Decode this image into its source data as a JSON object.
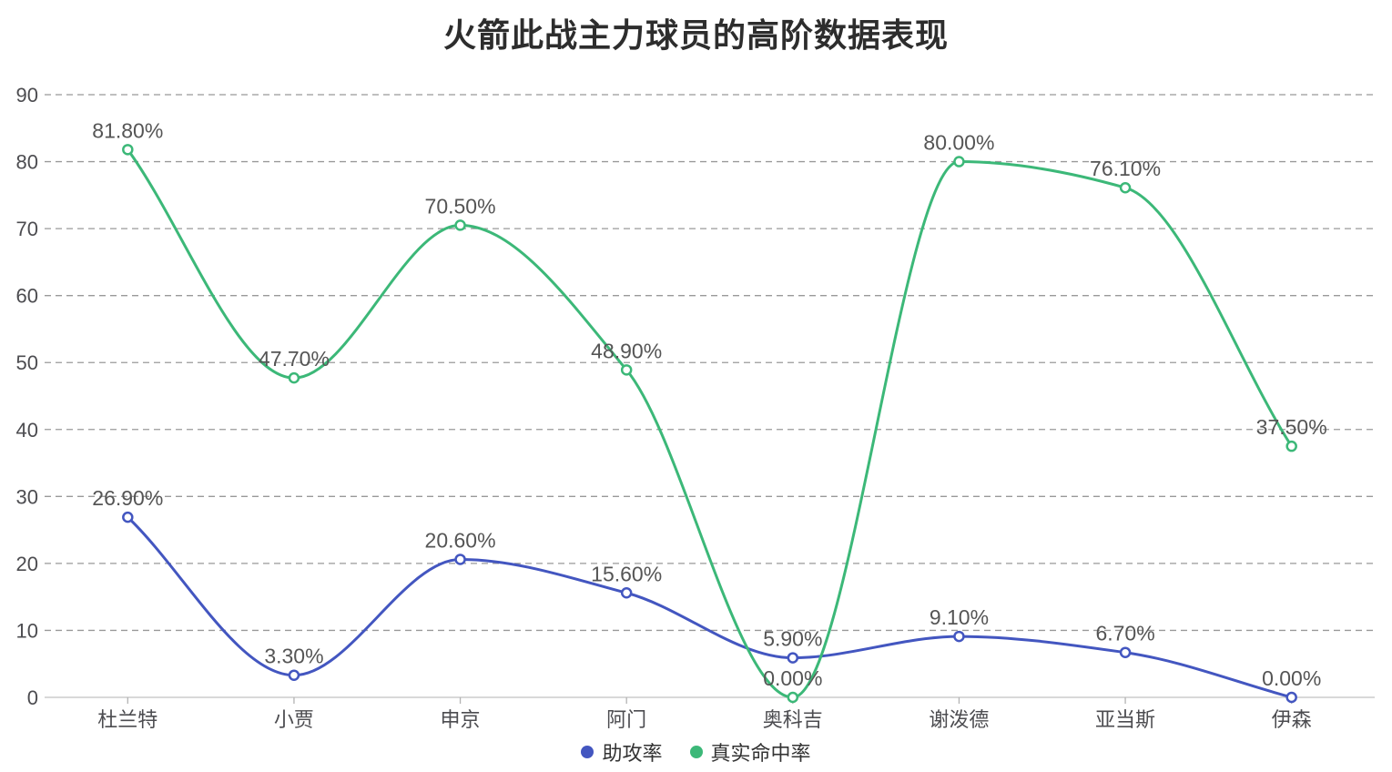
{
  "header": {
    "title": "火箭此战主力球员的高阶数据表现"
  },
  "colors": {
    "background": "#ffffff",
    "title_text": "#2d2d2d",
    "grid_line": "#999999",
    "axis_line": "#cccccc",
    "axis_tick": "#b3b3b3",
    "axis_label": "#4c4c50",
    "data_label": "#555555",
    "marker_fill": "#ffffff"
  },
  "chart_data": {
    "type": "line",
    "title": "火箭此战主力球员的高阶数据表现",
    "categories": [
      "杜兰特",
      "小贾",
      "申京",
      "阿门",
      "奥科吉",
      "谢泼德",
      "亚当斯",
      "伊森"
    ],
    "series": [
      {
        "name": "助攻率",
        "color": "#4356c0",
        "values": [
          26.9,
          3.3,
          20.6,
          15.6,
          5.9,
          9.1,
          6.7,
          0.0
        ],
        "labels": [
          "26.90%",
          "3.30%",
          "20.60%",
          "15.60%",
          "5.90%",
          "9.10%",
          "6.70%",
          "0.00%"
        ]
      },
      {
        "name": "真实命中率",
        "color": "#3cb878",
        "values": [
          81.8,
          47.7,
          70.5,
          48.9,
          0.0,
          80.0,
          76.1,
          37.5
        ],
        "labels": [
          "81.80%",
          "47.70%",
          "70.50%",
          "48.90%",
          "0.00%",
          "80.00%",
          "76.10%",
          "37.50%"
        ]
      }
    ],
    "xlabel": "",
    "ylabel": "",
    "ylim": [
      0,
      90
    ],
    "y_ticks": [
      0,
      10,
      20,
      30,
      40,
      50,
      60,
      70,
      80,
      90
    ],
    "grid": "dashed-horizontal",
    "smooth": true,
    "marker": "hollow-circle",
    "legend_position": "bottom"
  }
}
